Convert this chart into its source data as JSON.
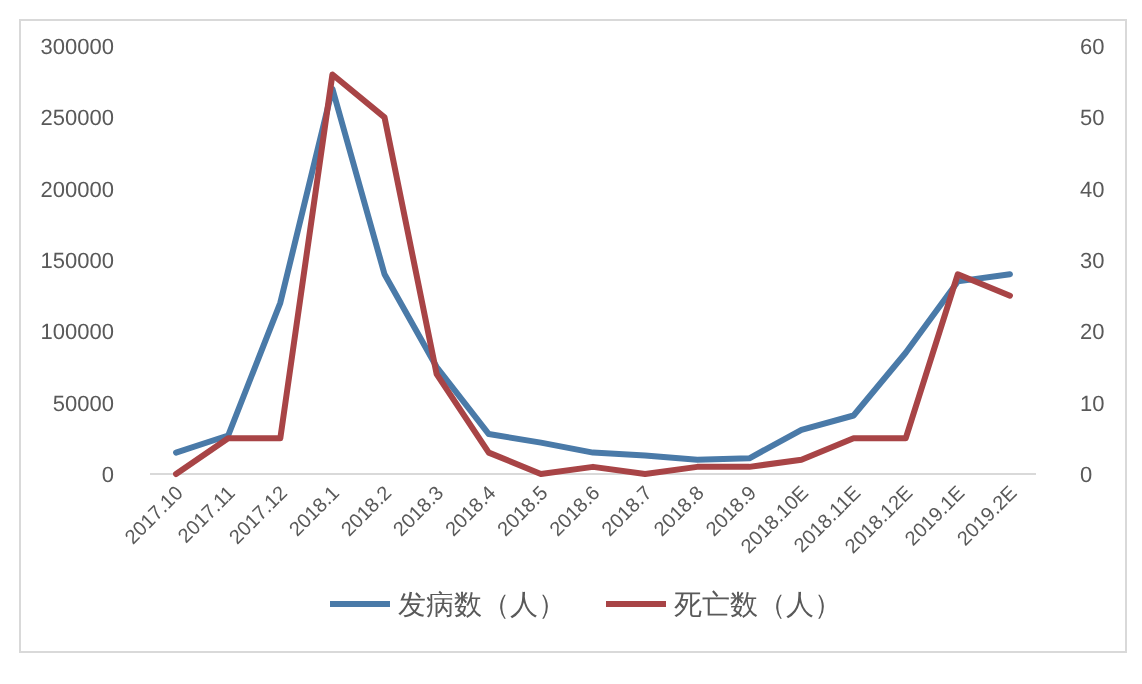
{
  "chart_data": {
    "type": "line",
    "categories": [
      "2017.10",
      "2017.11",
      "2017.12",
      "2018.1",
      "2018.2",
      "2018.3",
      "2018.4",
      "2018.5",
      "2018.6",
      "2018.7",
      "2018.8",
      "2018.9",
      "2018.10E",
      "2018.11E",
      "2018.12E",
      "2019.1E",
      "2019.2E"
    ],
    "series": [
      {
        "name": "发病数（人）",
        "color": "#4a7aa8",
        "values": [
          15000,
          27000,
          120000,
          270000,
          140000,
          75000,
          28000,
          22000,
          15000,
          13000,
          10000,
          11000,
          31000,
          41000,
          85000,
          135000,
          140000
        ]
      },
      {
        "name": "死亡数（人）",
        "color": "#a84446",
        "axis": "y2",
        "values": [
          0,
          5,
          5,
          56,
          50,
          14,
          3,
          0,
          1,
          0,
          1,
          1,
          2,
          5,
          5,
          28,
          25
        ]
      }
    ],
    "ylim": [
      0,
      300000
    ],
    "yticks": [
      0,
      50000,
      100000,
      150000,
      200000,
      250000,
      300000
    ],
    "y2lim": [
      0,
      60
    ],
    "y2ticks": [
      0,
      10,
      20,
      30,
      40,
      50,
      60
    ],
    "grid": false,
    "legend": "bottom",
    "marker": "none",
    "line_style": "solid"
  }
}
